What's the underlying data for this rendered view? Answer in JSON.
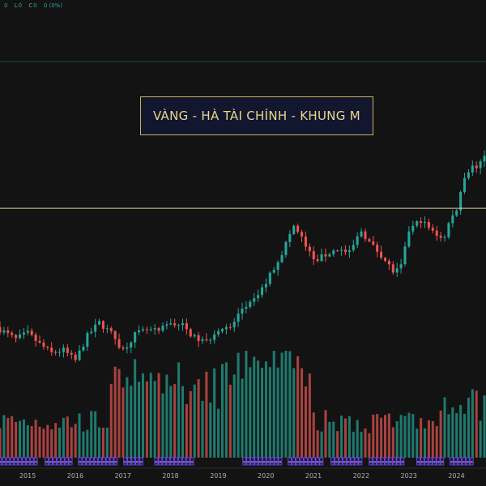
{
  "ohlc_readout": [
    {
      "label": "",
      "value": "0"
    },
    {
      "label": "L",
      "value": "0"
    },
    {
      "label": "C",
      "value": "0"
    },
    {
      "label": "",
      "value": "0 (0%)"
    }
  ],
  "annotation_title": "VÀNG - HÀ TÀI CHÍNH - KHUNG M",
  "colors": {
    "background": "#131313",
    "up": "#26a69a",
    "down": "#ef5350",
    "horizontal_line": "#d9cfa0",
    "title_border": "#c9b458",
    "title_fill": "#12162e",
    "title_text": "#e8d98c",
    "marker": "#7c4dff"
  },
  "chart_data": {
    "type": "candlestick",
    "title": "VÀNG - HÀ TÀI CHÍNH - KHUNG M",
    "x_tick_labels": [
      "2015",
      "2016",
      "2017",
      "2018",
      "2019",
      "2020",
      "2021",
      "2022",
      "2023",
      "2024"
    ],
    "x_range": [
      2014.42,
      2024.62
    ],
    "y_range": [
      950,
      2800
    ],
    "horizontal_line_value": 2075,
    "grid": false,
    "legend": "none",
    "candles_anchor_closes": [
      [
        2014.42,
        1285
      ],
      [
        2014.75,
        1220
      ],
      [
        2015.0,
        1260
      ],
      [
        2015.25,
        1190
      ],
      [
        2015.5,
        1130
      ],
      [
        2015.75,
        1150
      ],
      [
        2016.0,
        1080
      ],
      [
        2016.25,
        1240
      ],
      [
        2016.5,
        1330
      ],
      [
        2016.75,
        1260
      ],
      [
        2017.0,
        1150
      ],
      [
        2017.25,
        1250
      ],
      [
        2017.5,
        1280
      ],
      [
        2017.75,
        1270
      ],
      [
        2018.0,
        1330
      ],
      [
        2018.25,
        1310
      ],
      [
        2018.5,
        1230
      ],
      [
        2018.75,
        1200
      ],
      [
        2019.0,
        1290
      ],
      [
        2019.25,
        1290
      ],
      [
        2019.5,
        1420
      ],
      [
        2019.75,
        1470
      ],
      [
        2020.0,
        1590
      ],
      [
        2020.33,
        1780
      ],
      [
        2020.58,
        1960
      ],
      [
        2020.75,
        1880
      ],
      [
        2021.0,
        1730
      ],
      [
        2021.25,
        1770
      ],
      [
        2021.5,
        1810
      ],
      [
        2021.75,
        1780
      ],
      [
        2022.0,
        1930
      ],
      [
        2022.2,
        1840
      ],
      [
        2022.4,
        1780
      ],
      [
        2022.7,
        1650
      ],
      [
        2022.85,
        1700
      ],
      [
        2023.0,
        1930
      ],
      [
        2023.25,
        2000
      ],
      [
        2023.5,
        1920
      ],
      [
        2023.75,
        1880
      ],
      [
        2023.85,
        1990
      ],
      [
        2024.0,
        2060
      ],
      [
        2024.15,
        2280
      ],
      [
        2024.3,
        2340
      ],
      [
        2024.5,
        2360
      ],
      [
        2024.62,
        2450
      ]
    ],
    "volume_profile": "relative monthly volume bars coloured by candle direction"
  }
}
